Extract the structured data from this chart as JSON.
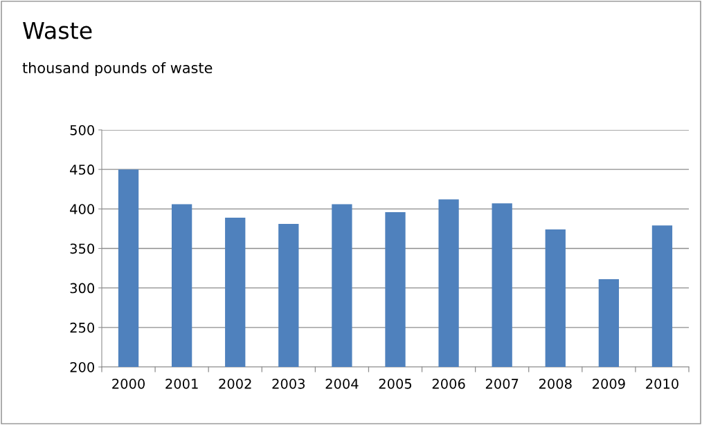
{
  "chart_data": {
    "type": "bar",
    "title": "Waste",
    "subtitle": "thousand pounds of waste",
    "categories": [
      "2000",
      "2001",
      "2002",
      "2003",
      "2004",
      "2005",
      "2006",
      "2007",
      "2008",
      "2009",
      "2010"
    ],
    "values": [
      450,
      406,
      389,
      381,
      406,
      396,
      412,
      407,
      374,
      311,
      379
    ],
    "color": "#4f81bd",
    "ylim": [
      200,
      500
    ],
    "yticks": [
      200,
      250,
      300,
      350,
      400,
      450,
      500
    ],
    "grid": "y",
    "legend": false
  }
}
